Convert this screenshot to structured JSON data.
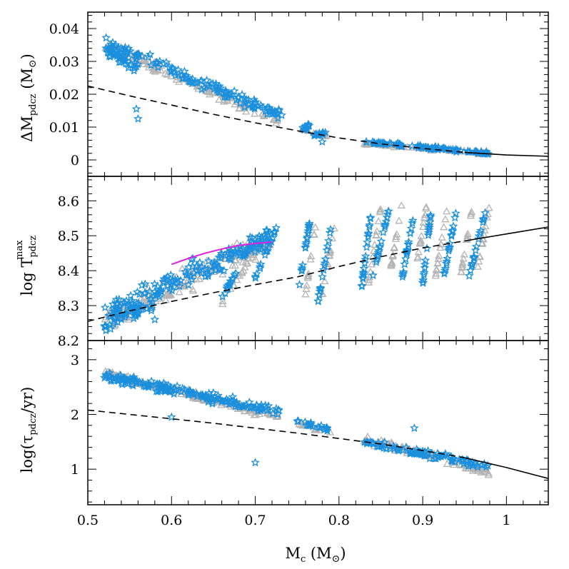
{
  "chart_data": {
    "type": "scatter",
    "xlabel": {
      "main": "M",
      "sub": "c",
      "unit_open": " (M",
      "unit_symbol": "⊙",
      "unit_close": ")"
    },
    "xlim": [
      0.5,
      1.05
    ],
    "x_ticks": [
      0.5,
      0.6,
      0.7,
      0.8,
      0.9,
      1.0
    ],
    "x_tick_labels": [
      "0.5",
      "0.6",
      "0.7",
      "0.8",
      "0.9",
      "1"
    ],
    "colors": {
      "star": "#1a8fdd",
      "triangle": "#b4b4b4",
      "magenta": "#e020e0",
      "fit": "#000000"
    },
    "panels": [
      {
        "id": "delta-m",
        "ylabel": {
          "prefix": "ΔM",
          "sub": "pdcz",
          "unit_open": "  (M",
          "unit_symbol": "⊙",
          "unit_close": ")"
        },
        "ylim": [
          -0.005,
          0.045
        ],
        "y_ticks": [
          0,
          0.01,
          0.02,
          0.03,
          0.04
        ],
        "y_tick_labels": [
          "0",
          "0.01",
          "0.02",
          "0.03",
          "0.04"
        ],
        "fit_line": {
          "x": [
            0.5,
            0.55,
            0.6,
            0.65,
            0.7,
            0.75,
            0.8,
            0.85,
            0.9,
            0.95,
            1.0,
            1.05
          ],
          "y": [
            0.0225,
            0.0195,
            0.0167,
            0.0139,
            0.0113,
            0.0089,
            0.0067,
            0.0049,
            0.0035,
            0.0023,
            0.0015,
            0.0011
          ],
          "dash_until": 0.97
        },
        "star_groups": [
          {
            "x": [
              0.52,
              0.735
            ],
            "y": [
              0.036,
              0.013
            ],
            "spread": 0.0025,
            "n": 130
          },
          {
            "x": [
              0.52,
              0.56
            ],
            "y": [
              0.034,
              0.028
            ],
            "spread": 0.0022,
            "n": 40
          },
          {
            "x": [
              0.755,
              0.765
            ],
            "y": [
              0.009,
              0.0105
            ],
            "spread": 0.0008,
            "n": 12
          },
          {
            "x": [
              0.77,
              0.785
            ],
            "y": [
              0.0075,
              0.0085
            ],
            "spread": 0.0007,
            "n": 12
          },
          {
            "x": [
              0.83,
              0.98
            ],
            "y": [
              0.0055,
              0.002
            ],
            "spread": 0.0007,
            "n": 80
          }
        ],
        "tri_groups": [
          {
            "x": [
              0.52,
              0.73
            ],
            "y": [
              0.035,
              0.0115
            ],
            "spread": 0.0022,
            "n": 130
          },
          {
            "x": [
              0.75,
              0.79
            ],
            "y": [
              0.0095,
              0.007
            ],
            "spread": 0.0007,
            "n": 16
          },
          {
            "x": [
              0.83,
              0.98
            ],
            "y": [
              0.005,
              0.0018
            ],
            "spread": 0.0006,
            "n": 80
          }
        ],
        "outliers": [
          {
            "x": 0.558,
            "y": 0.0155
          },
          {
            "x": 0.56,
            "y": 0.0125
          },
          {
            "x": 0.78,
            "y": 0.0055
          }
        ]
      },
      {
        "id": "log-tmax",
        "ylabel": {
          "prefix": "log  T",
          "sub": "pdcz",
          "sup": "max"
        },
        "ylim": [
          8.2,
          8.67
        ],
        "y_ticks": [
          8.2,
          8.3,
          8.4,
          8.5,
          8.6
        ],
        "y_tick_labels": [
          "8.2",
          "8.3",
          "8.4",
          "8.5",
          "8.6"
        ],
        "fit_line": {
          "x": [
            0.5,
            0.55,
            0.6,
            0.65,
            0.7,
            0.75,
            0.8,
            0.85,
            0.9,
            0.95,
            1.0,
            1.05
          ],
          "y": [
            8.255,
            8.285,
            8.312,
            8.337,
            8.36,
            8.382,
            8.412,
            8.44,
            8.465,
            8.485,
            8.505,
            8.525
          ],
          "dash_until": 0.97
        },
        "magenta_curve": {
          "x": [
            0.6,
            0.62,
            0.64,
            0.66,
            0.68,
            0.7,
            0.72
          ],
          "y": [
            8.418,
            8.435,
            8.45,
            8.462,
            8.472,
            8.478,
            8.482
          ]
        },
        "star_groups": [
          {
            "x": [
              0.52,
              0.72
            ],
            "y": [
              8.27,
              8.5
            ],
            "spread": 0.05,
            "n": 170
          },
          {
            "x": [
              0.52,
              0.58
            ],
            "y": [
              8.24,
              8.3
            ],
            "spread": 0.02,
            "n": 30
          },
          {
            "x": [
              0.66,
              0.7
            ],
            "y": [
              8.32,
              8.5
            ],
            "spread": 0.01,
            "n": 25
          },
          {
            "x": [
              0.7,
              0.725
            ],
            "y": [
              8.38,
              8.52
            ],
            "spread": 0.01,
            "n": 18
          },
          {
            "x": [
              0.75,
              0.765
            ],
            "y": [
              8.32,
              8.54
            ],
            "spread": 0.005,
            "n": 18
          },
          {
            "x": [
              0.775,
              0.79
            ],
            "y": [
              8.31,
              8.52
            ],
            "spread": 0.005,
            "n": 18
          },
          {
            "x": [
              0.827,
              0.838
            ],
            "y": [
              8.35,
              8.56
            ],
            "spread": 0.005,
            "n": 20
          },
          {
            "x": [
              0.84,
              0.86
            ],
            "y": [
              8.38,
              8.58
            ],
            "spread": 0.005,
            "n": 20
          },
          {
            "x": [
              0.875,
              0.89
            ],
            "y": [
              8.37,
              8.57
            ],
            "spread": 0.005,
            "n": 20
          },
          {
            "x": [
              0.9,
              0.91
            ],
            "y": [
              8.36,
              8.57
            ],
            "spread": 0.005,
            "n": 20
          },
          {
            "x": [
              0.925,
              0.94
            ],
            "y": [
              8.38,
              8.57
            ],
            "spread": 0.005,
            "n": 20
          },
          {
            "x": [
              0.955,
              0.975
            ],
            "y": [
              8.38,
              8.57
            ],
            "spread": 0.005,
            "n": 20
          }
        ],
        "tri_groups": [
          {
            "x": [
              0.52,
              0.72
            ],
            "y": [
              8.25,
              8.49
            ],
            "spread": 0.05,
            "n": 160
          },
          {
            "x": [
              0.66,
              0.705
            ],
            "y": [
              8.3,
              8.48
            ],
            "spread": 0.012,
            "n": 22
          },
          {
            "x": [
              0.76,
              0.772
            ],
            "y": [
              8.33,
              8.53
            ],
            "spread": 0.005,
            "n": 14
          },
          {
            "x": [
              0.78,
              0.795
            ],
            "y": [
              8.33,
              8.53
            ],
            "spread": 0.005,
            "n": 14
          },
          {
            "x": [
              0.835,
              0.85
            ],
            "y": [
              8.36,
              8.58
            ],
            "spread": 0.005,
            "n": 16
          },
          {
            "x": [
              0.86,
              0.875
            ],
            "y": [
              8.38,
              8.59
            ],
            "spread": 0.005,
            "n": 16
          },
          {
            "x": [
              0.89,
              0.905
            ],
            "y": [
              8.38,
              8.59
            ],
            "spread": 0.005,
            "n": 16
          },
          {
            "x": [
              0.915,
              0.93
            ],
            "y": [
              8.38,
              8.59
            ],
            "spread": 0.005,
            "n": 16
          },
          {
            "x": [
              0.945,
              0.96
            ],
            "y": [
              8.38,
              8.59
            ],
            "spread": 0.005,
            "n": 16
          },
          {
            "x": [
              0.965,
              0.98
            ],
            "y": [
              8.4,
              8.59
            ],
            "spread": 0.005,
            "n": 16
          }
        ],
        "outliers": [
          {
            "x": 0.52,
            "y": 8.24
          },
          {
            "x": 0.58,
            "y": 8.26
          }
        ]
      },
      {
        "id": "log-tau",
        "ylabel": {
          "prefix": "log(τ",
          "sub": "pdcz",
          "suffix": "/yr)"
        },
        "ylim": [
          0.35,
          3.35
        ],
        "y_ticks": [
          1,
          2,
          3
        ],
        "y_tick_labels": [
          "1",
          "2",
          "3"
        ],
        "fit_line": {
          "x": [
            0.5,
            0.55,
            0.6,
            0.65,
            0.7,
            0.75,
            0.8,
            0.85,
            0.9,
            0.95,
            1.0,
            1.05
          ],
          "y": [
            2.08,
            2.0,
            1.92,
            1.84,
            1.75,
            1.66,
            1.56,
            1.46,
            1.34,
            1.21,
            1.03,
            0.83
          ],
          "dash_until": 0.97
        },
        "star_groups": [
          {
            "x": [
              0.52,
              0.73
            ],
            "y": [
              2.7,
              2.05
            ],
            "spread": 0.12,
            "n": 170
          },
          {
            "x": [
              0.75,
              0.79
            ],
            "y": [
              1.9,
              1.7
            ],
            "spread": 0.06,
            "n": 18
          },
          {
            "x": [
              0.83,
              0.98
            ],
            "y": [
              1.5,
              1.05
            ],
            "spread": 0.1,
            "n": 90
          }
        ],
        "tri_groups": [
          {
            "x": [
              0.52,
              0.73
            ],
            "y": [
              2.75,
              1.95
            ],
            "spread": 0.1,
            "n": 170
          },
          {
            "x": [
              0.75,
              0.79
            ],
            "y": [
              1.85,
              1.65
            ],
            "spread": 0.06,
            "n": 16
          },
          {
            "x": [
              0.83,
              0.98
            ],
            "y": [
              1.55,
              0.95
            ],
            "spread": 0.12,
            "n": 90
          }
        ],
        "outliers": [
          {
            "x": 0.7,
            "y": 1.12
          },
          {
            "x": 0.89,
            "y": 1.75
          },
          {
            "x": 0.6,
            "y": 1.95
          }
        ]
      }
    ]
  }
}
